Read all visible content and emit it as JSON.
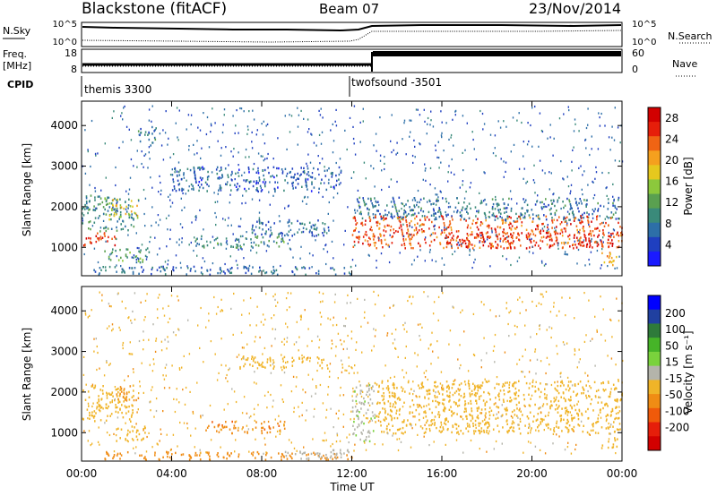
{
  "header": {
    "station": "Blackstone (fitACF)",
    "beam": "Beam 07",
    "date": "23/Nov/2014"
  },
  "noise_panel": {
    "left_label": "N.Sky",
    "right_label": "N.Search",
    "left_ticks": [
      "10^5",
      "10^0"
    ],
    "right_ticks": [
      "10^5",
      "10^0"
    ]
  },
  "freq_panel": {
    "left_label_line1": "Freq.",
    "left_label_line2": "[MHz]",
    "left_ticks": [
      "18",
      "8"
    ],
    "right_label": "Nave",
    "right_ticks": [
      "60",
      "0"
    ]
  },
  "cpid_panel": {
    "label": "CPID",
    "segments": [
      {
        "name": "themis 3300",
        "start_ut": "00:00",
        "end_ut": "12:00"
      },
      {
        "name": "twofsound -3501",
        "start_ut": "12:00",
        "end_ut": "24:00"
      }
    ]
  },
  "colors": {
    "power_scale": [
      "#1a1aff",
      "#1f3fc0",
      "#2d6fa8",
      "#3a8a7a",
      "#5aa050",
      "#8cc83c",
      "#e6c81e",
      "#f5a01e",
      "#f06414",
      "#e61e0a",
      "#d20000"
    ],
    "velocity_scale": [
      "#0000ff",
      "#2040a0",
      "#2e7a3a",
      "#46b428",
      "#7ad23c",
      "#b4b4aa",
      "#f0b428",
      "#f08c14",
      "#f05a0a",
      "#e61e0a",
      "#d20000"
    ]
  },
  "chart_data": [
    {
      "type": "heatmap",
      "panel": "power",
      "xlabel": "Time UT",
      "ylabel": "Slant Range [km]",
      "x_ticks": [
        "00:00",
        "04:00",
        "08:00",
        "12:00",
        "16:00",
        "20:00",
        "00:00"
      ],
      "y_ticks": [
        1000,
        2000,
        3000,
        4000
      ],
      "ylim": [
        300,
        4600
      ],
      "colorbar_label": "Power [dB]",
      "colorbar_ticks": [
        4,
        8,
        12,
        16,
        20,
        24,
        28
      ],
      "colorbar_range": [
        0,
        30
      ],
      "regions": [
        {
          "t0": 0.0,
          "t1": 1.5,
          "r0": 1050,
          "r1": 1400,
          "value": 26
        },
        {
          "t0": 0.0,
          "t1": 2.3,
          "r0": 1400,
          "r1": 2300,
          "value": 10
        },
        {
          "t0": 1.2,
          "t1": 2.5,
          "r0": 1700,
          "r1": 2200,
          "value": 18
        },
        {
          "t0": 1.0,
          "t1": 3.0,
          "r0": 650,
          "r1": 1000,
          "value": 12
        },
        {
          "t0": 2.5,
          "t1": 3.3,
          "r0": 3500,
          "r1": 4000,
          "value": 8
        },
        {
          "t0": 5.0,
          "t1": 9.0,
          "r0": 1000,
          "r1": 1300,
          "value": 10
        },
        {
          "t0": 7.5,
          "t1": 11.0,
          "r0": 1300,
          "r1": 1700,
          "value": 7
        },
        {
          "t0": 0.5,
          "t1": 12.0,
          "r0": 350,
          "r1": 550,
          "value": 7
        },
        {
          "t0": 4.0,
          "t1": 11.5,
          "r0": 2400,
          "r1": 3000,
          "value": 6
        },
        {
          "t0": 12.0,
          "t1": 24.0,
          "r0": 1700,
          "r1": 2250,
          "value": 8
        },
        {
          "t0": 12.0,
          "t1": 24.0,
          "r0": 1000,
          "r1": 1800,
          "value": 24
        },
        {
          "t0": 16.0,
          "t1": 24.0,
          "r0": 1000,
          "r1": 1400,
          "value": 26
        },
        {
          "t0": 23.0,
          "t1": 23.8,
          "r0": 550,
          "r1": 900,
          "value": 20
        }
      ]
    },
    {
      "type": "heatmap",
      "panel": "velocity",
      "xlabel": "Time UT",
      "ylabel": "Slant Range [km]",
      "x_ticks": [
        "00:00",
        "04:00",
        "08:00",
        "12:00",
        "16:00",
        "20:00",
        "00:00"
      ],
      "y_ticks": [
        1000,
        2000,
        3000,
        4000
      ],
      "ylim": [
        300,
        4600
      ],
      "colorbar_label": "Velocity [m s⁻¹]",
      "colorbar_ticks": [
        200,
        100,
        50,
        15,
        -15,
        -50,
        -100,
        -200
      ],
      "regions": [
        {
          "t0": 0.0,
          "t1": 2.3,
          "r0": 1300,
          "r1": 2200,
          "value": 0
        },
        {
          "t0": 1.5,
          "t1": 2.5,
          "r0": 1800,
          "r1": 2200,
          "value": -30
        },
        {
          "t0": 1.5,
          "t1": 2.8,
          "r0": 800,
          "r1": 1200,
          "value": 0
        },
        {
          "t0": 5.5,
          "t1": 9.0,
          "r0": 1000,
          "r1": 1300,
          "value": -40
        },
        {
          "t0": 7.0,
          "t1": 11.0,
          "r0": 2600,
          "r1": 2900,
          "value": 0
        },
        {
          "t0": 1.0,
          "t1": 12.0,
          "r0": 350,
          "r1": 550,
          "value": -30
        },
        {
          "t0": 9.0,
          "t1": 12.0,
          "r0": 350,
          "r1": 600,
          "value": 30
        },
        {
          "t0": 12.0,
          "t1": 13.0,
          "r0": 800,
          "r1": 2200,
          "value": 40
        },
        {
          "t0": 13.0,
          "t1": 24.0,
          "r0": 1000,
          "r1": 2300,
          "value": 0
        },
        {
          "t0": 23.0,
          "t1": 23.8,
          "r0": 600,
          "r1": 900,
          "value": 0
        }
      ]
    }
  ]
}
